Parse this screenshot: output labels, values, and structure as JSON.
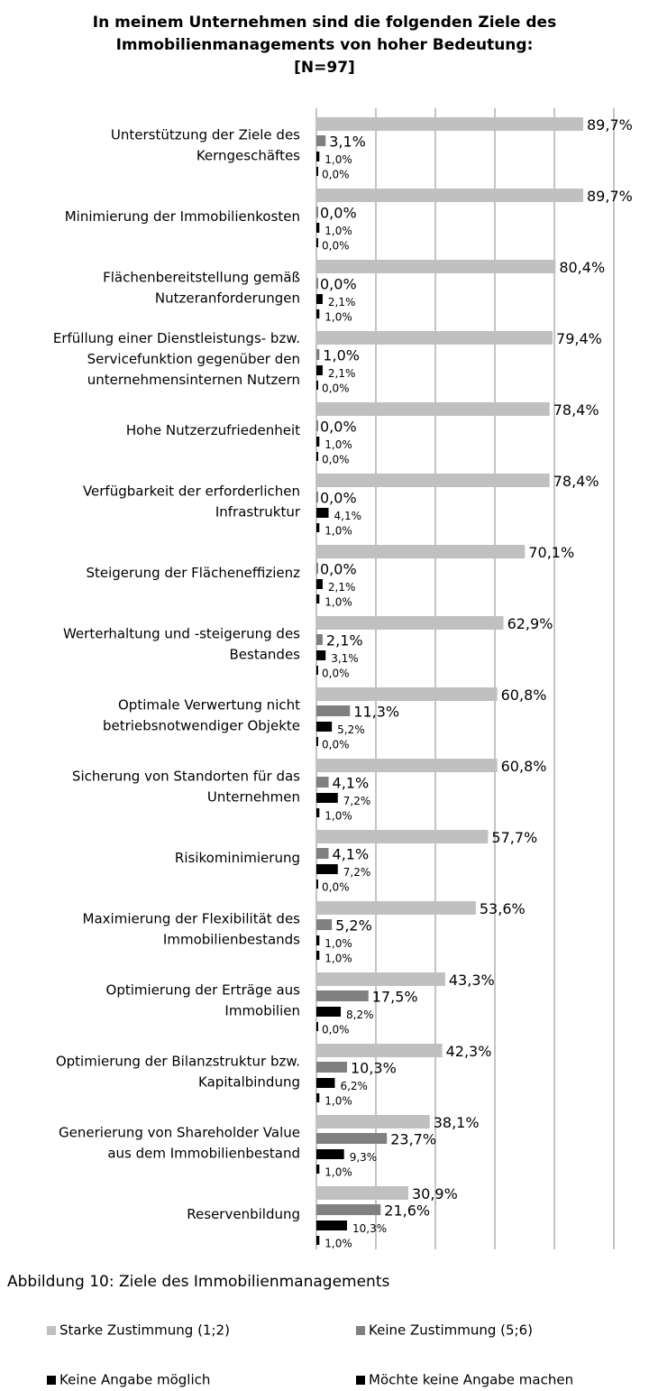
{
  "chart_data": {
    "type": "bar",
    "orientation": "horizontal",
    "title": "In meinem Unternehmen sind die folgenden Ziele des\nImmobilienmanagements  von hoher Bedeutung:\n[N=97]",
    "caption": "Abbildung 10: Ziele des Immobilienmanagements",
    "categories": [
      "Unterstützung der Ziele des\nKerngeschäftes",
      "Minimierung der Immobilienkosten",
      "Flächenbereitstellung gemäß\nNutzeranforderungen",
      "Erfüllung einer Dienstleistungs- bzw.\nServicefunktion gegenüber den\nunternehmensinternen Nutzern",
      "Hohe Nutzerzufriedenheit",
      "Verfügbarkeit der erforderlichen\nInfrastruktur",
      "Steigerung der Flächeneffizienz",
      "Werterhaltung und -steigerung des\nBestandes",
      "Optimale Verwertung nicht\nbetriebsnotwendiger Objekte",
      "Sicherung von Standorten für das\nUnternehmen",
      "Risikominimierung",
      "Maximierung der Flexibilität des\nImmobilienbestands",
      "Optimierung der Erträge aus\nImmobilien",
      "Optimierung der Bilanzstruktur bzw.\nKapitalbindung",
      "Generierung von Shareholder Value\naus dem Immobilienbestand",
      "Reservenbildung"
    ],
    "series": [
      {
        "name": "Starke Zustimmung (1;2)",
        "color": "#c0c0c0",
        "values": [
          89.7,
          89.7,
          80.4,
          79.4,
          78.4,
          78.4,
          70.1,
          62.9,
          60.8,
          60.8,
          57.7,
          53.6,
          43.3,
          42.3,
          38.1,
          30.9
        ],
        "value_labels": [
          "89,7%",
          "89,7%",
          "80,4%",
          "79,4%",
          "78,4%",
          "78,4%",
          "70,1%",
          "62,9%",
          "60,8%",
          "60,8%",
          "57,7%",
          "53,6%",
          "43,3%",
          "42,3%",
          "38,1%",
          "30,9%"
        ]
      },
      {
        "name": "Keine Zustimmung (5;6)",
        "color": "#808080",
        "values": [
          3.1,
          0.0,
          0.0,
          1.0,
          0.0,
          0.0,
          0.0,
          2.1,
          11.3,
          4.1,
          4.1,
          5.2,
          17.5,
          10.3,
          23.7,
          21.6
        ],
        "value_labels": [
          "3,1%",
          "0,0%",
          "0,0%",
          "1,0%",
          "0,0%",
          "0,0%",
          "0,0%",
          "2,1%",
          "11,3%",
          "4,1%",
          "4,1%",
          "5,2%",
          "17,5%",
          "10,3%",
          "23,7%",
          "21,6%"
        ]
      },
      {
        "name": "Keine Angabe möglich",
        "color": "#000000",
        "values": [
          1.0,
          1.0,
          2.1,
          2.1,
          1.0,
          4.1,
          2.1,
          3.1,
          5.2,
          7.2,
          7.2,
          1.0,
          8.2,
          6.2,
          9.3,
          10.3
        ],
        "value_labels": [
          "1,0%",
          "1,0%",
          "2,1%",
          "2,1%",
          "1,0%",
          "4,1%",
          "2,1%",
          "3,1%",
          "5,2%",
          "7,2%",
          "7,2%",
          "1,0%",
          "8,2%",
          "6,2%",
          "9,3%",
          "10,3%"
        ]
      },
      {
        "name": "Möchte keine Angabe machen",
        "color": "#000000",
        "values": [
          0.0,
          0.0,
          1.0,
          0.0,
          0.0,
          1.0,
          1.0,
          0.0,
          0.0,
          1.0,
          0.0,
          1.0,
          0.0,
          1.0,
          1.0,
          1.0
        ],
        "value_labels": [
          "0,0%",
          "0,0%",
          "1,0%",
          "0,0%",
          "0,0%",
          "1,0%",
          "1,0%",
          "0,0%",
          "0,0%",
          "1,0%",
          "0,0%",
          "1,0%",
          "0,0%",
          "1,0%",
          "1,0%",
          "1,0%"
        ]
      }
    ],
    "xlim": [
      0,
      100
    ],
    "xticks": [
      0,
      20,
      40,
      60,
      80,
      100
    ],
    "grid": true
  }
}
